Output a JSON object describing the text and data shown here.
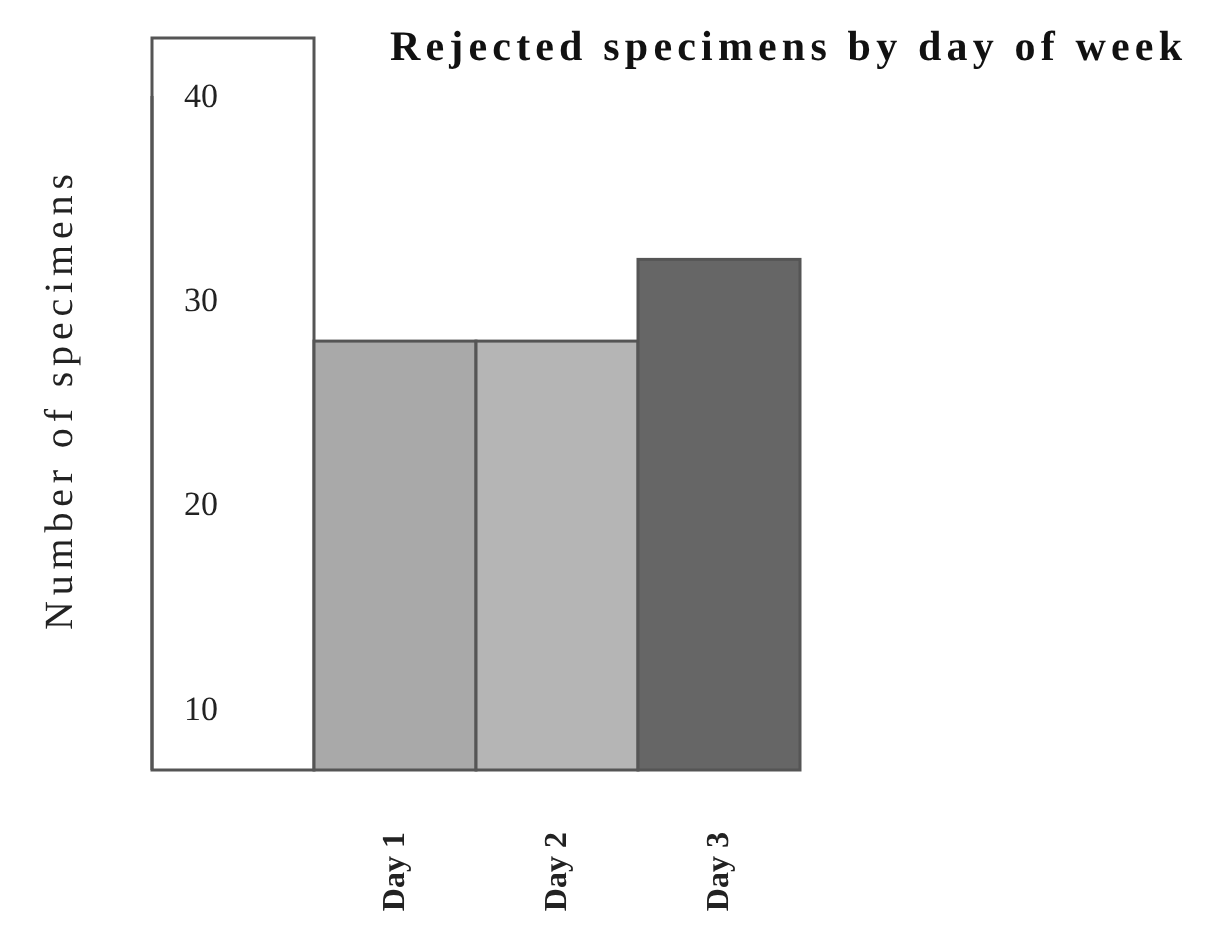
{
  "chart_data": {
    "type": "bar",
    "title": "Rejected specimens by day of week",
    "ylabel": "Number of specimens",
    "categories": [
      "Day 1",
      "Day 2",
      "Day 3"
    ],
    "values": [
      28,
      28,
      32
    ],
    "colors": [
      "#a9a9a9",
      "#b5b5b5",
      "#666666"
    ],
    "ylim": [
      7,
      40
    ],
    "yticks": [
      10,
      20,
      30,
      40
    ],
    "grid": false
  }
}
